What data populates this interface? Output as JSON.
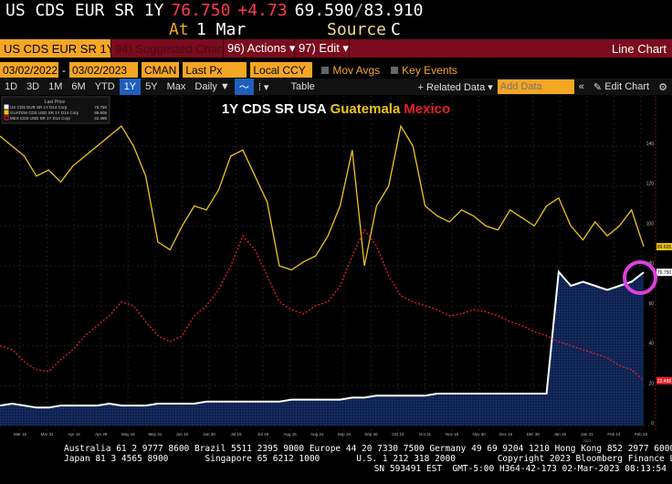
{
  "header": {
    "ticker": "US CDS EUR SR 1Y",
    "last": "76.750",
    "change": "+4.73",
    "range_low": "69.590",
    "range_sep": "/",
    "range_high": "83.910",
    "at_label": "At",
    "at_value": "1 Mar",
    "source_label": "Source",
    "source_value": "C"
  },
  "toolbar": {
    "security": "US CDS EUR SR 1Y D",
    "suggested": "94) Suggested Charts",
    "actions": "96) Actions ▾",
    "edit": "97) Edit ▾",
    "chart_type": "Line Chart"
  },
  "controls": {
    "start_date": "03/02/2022",
    "dash": "-",
    "end_date": "03/02/2023",
    "cman": "CMAN",
    "field": "Last Px",
    "currency": "Local CCY",
    "mov_avgs": "Mov Avgs",
    "key_events": "Key Events"
  },
  "periods": [
    "1D",
    "3D",
    "1M",
    "6M",
    "YTD",
    "1Y",
    "5Y",
    "Max"
  ],
  "period_selected": "1Y",
  "frequency": "Daily ▼",
  "table_label": "Table",
  "related_data": "+ Related Data ▾",
  "add_data_placeholder": "Add Data",
  "edit_chart": "Edit Chart",
  "colors": {
    "us": "#ffffff",
    "guatemala": "#f0c419",
    "mexico": "#e8202a",
    "fill": "#0e2250",
    "accent": "#f5a623",
    "highlight": "#e040e0"
  },
  "chart_data": {
    "type": "line",
    "title_parts": [
      "1Y CDS SR USA",
      "Guatemala",
      "Mexico"
    ],
    "legend": {
      "header": "Last Price",
      "placement": "top-left",
      "entries": [
        {
          "name": "US CDS EUR SR 1Y D14 Corp",
          "value": "76.750"
        },
        {
          "name": "GUATEM CDS USD SR 1Y D14 Corp",
          "value": "89.605"
        },
        {
          "name": "MEX CDS USD SR 1Y D14 Corp",
          "value": "22.486"
        }
      ]
    },
    "x_range": [
      "03/02/2022",
      "03/02/2023"
    ],
    "x_ticks": [
      "Mar 15",
      "Mar 31",
      "Apr 15",
      "Apr 29",
      "May 16",
      "May 31",
      "Jun 15",
      "Jun 30",
      "Jul 15",
      "Jul 29",
      "Aug 15",
      "Aug 31",
      "Sep 15",
      "Sep 30",
      "Oct 14",
      "Oct 31",
      "Nov 15",
      "Nov 30",
      "Dec 15",
      "Dec 30",
      "Jan 16",
      "Jan 31",
      "Feb 14",
      "Feb 28"
    ],
    "x_year_label": "2023",
    "y_ticks": [
      0,
      20,
      40,
      60,
      80,
      100,
      120,
      140
    ],
    "ylim": [
      0,
      145
    ],
    "grid": true,
    "series": [
      {
        "name": "US CDS EUR SR 1Y",
        "style": "solid-filled",
        "values": [
          10,
          11,
          10,
          9,
          9,
          10,
          10,
          10,
          10,
          11,
          10,
          10,
          10,
          11,
          11,
          11,
          11,
          12,
          12,
          12,
          12,
          12,
          12,
          12,
          13,
          13,
          13,
          13,
          13,
          14,
          14,
          15,
          15,
          15,
          15,
          15,
          16,
          16,
          16,
          16,
          16,
          16,
          16,
          16,
          16,
          16,
          77,
          70,
          72,
          70,
          68,
          70,
          72,
          76.75
        ]
      },
      {
        "name": "Guatemala CDS USD SR 1Y",
        "style": "solid",
        "values": [
          145,
          140,
          135,
          125,
          128,
          122,
          130,
          135,
          140,
          145,
          150,
          140,
          125,
          92,
          88,
          100,
          110,
          108,
          118,
          135,
          138,
          125,
          112,
          80,
          78,
          82,
          85,
          95,
          110,
          138,
          80,
          110,
          120,
          150,
          140,
          110,
          105,
          102,
          108,
          105,
          100,
          98,
          108,
          104,
          100,
          110,
          114,
          100,
          93,
          102,
          95,
          100,
          108,
          89.605
        ]
      },
      {
        "name": "Mexico CDS USD SR 1Y",
        "style": "dotted",
        "values": [
          40,
          38,
          32,
          28,
          27,
          33,
          38,
          45,
          50,
          55,
          62,
          60,
          52,
          45,
          42,
          45,
          55,
          60,
          68,
          80,
          95,
          88,
          75,
          62,
          58,
          56,
          60,
          62,
          70,
          85,
          98,
          90,
          75,
          65,
          62,
          60,
          58,
          55,
          56,
          58,
          57,
          55,
          52,
          50,
          47,
          45,
          42,
          40,
          38,
          36,
          34,
          30,
          28,
          22.486
        ]
      }
    ]
  },
  "footer": {
    "line1": "Australia 61 2 9777 8600 Brazil 5511 2395 9000 Europe 44 20 7330 7500 Germany 49 69 9204 1210 Hong Kong 852 2977 6000",
    "line2": "Japan 81 3 4565 8900       Singapore 65 6212 1000       U.S. 1 212 318 2000        Copyright 2023 Bloomberg Finance L.P.",
    "line3": "SN 593491 EST  GMT-5:00 H364-42-173 02-Mar-2023 08:13:54"
  }
}
